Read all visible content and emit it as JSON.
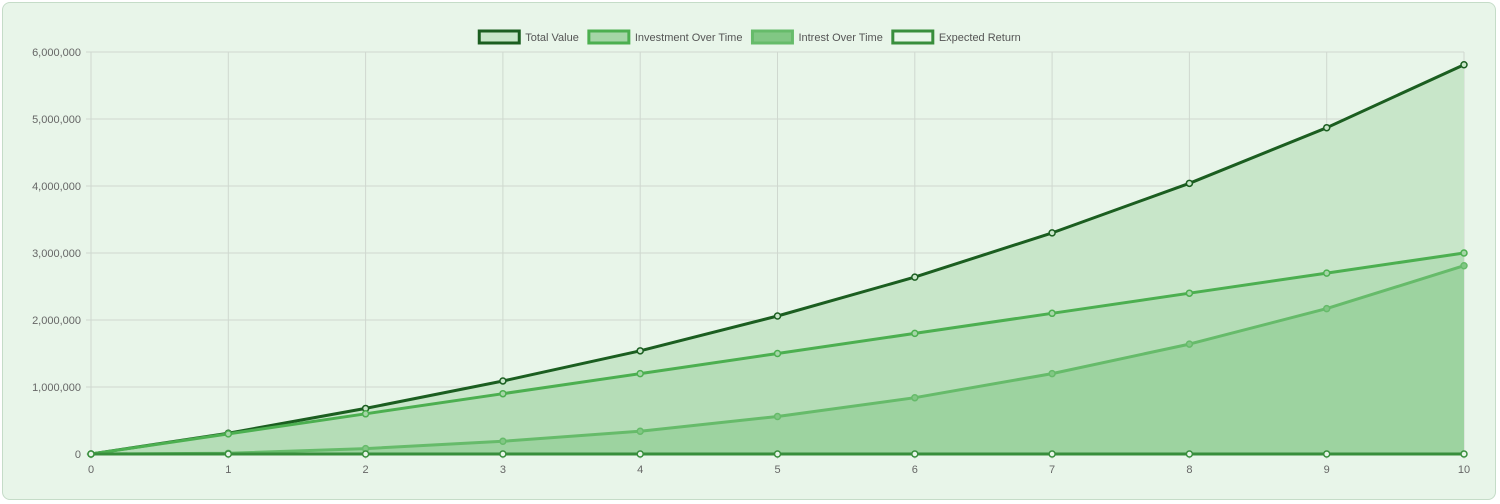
{
  "chart_data": {
    "type": "line",
    "x": [
      0,
      1,
      2,
      3,
      4,
      5,
      6,
      7,
      8,
      9,
      10
    ],
    "ylim": [
      0,
      6000000
    ],
    "yticks": [
      0,
      1000000,
      2000000,
      3000000,
      4000000,
      5000000,
      6000000
    ],
    "ytick_labels": [
      "0",
      "1,000,000",
      "2,000,000",
      "3,000,000",
      "4,000,000",
      "5,000,000",
      "6,000,000"
    ],
    "xtick_labels": [
      "0",
      "1",
      "2",
      "3",
      "4",
      "5",
      "6",
      "7",
      "8",
      "9",
      "10"
    ],
    "grid": true,
    "legend_position": "top-center",
    "series": [
      {
        "name": "Total Value",
        "values": [
          0,
          310000,
          680000,
          1090000,
          1540000,
          2060000,
          2640000,
          3300000,
          4040000,
          4870000,
          5810000
        ],
        "stroke": "#1b5e20",
        "fill": "#c8e6c9",
        "fill_opacity": 1
      },
      {
        "name": "Investment Over Time",
        "values": [
          0,
          300000,
          600000,
          900000,
          1200000,
          1500000,
          1800000,
          2100000,
          2400000,
          2700000,
          3000000
        ],
        "stroke": "#4caf50",
        "fill": "#a5d6a7",
        "fill_opacity": 0.55
      },
      {
        "name": "Intrest Over Time",
        "values": [
          0,
          10000,
          80000,
          190000,
          340000,
          560000,
          840000,
          1200000,
          1640000,
          2170000,
          2810000
        ],
        "stroke": "#66bb6a",
        "fill": "#81c784",
        "fill_opacity": 0.45
      },
      {
        "name": "Expected Return",
        "values": [
          0,
          0,
          0,
          0,
          0,
          0,
          0,
          0,
          0,
          0,
          0
        ],
        "stroke": "#388e3c",
        "fill": "#e8f5e9",
        "fill_opacity": 0
      }
    ]
  }
}
